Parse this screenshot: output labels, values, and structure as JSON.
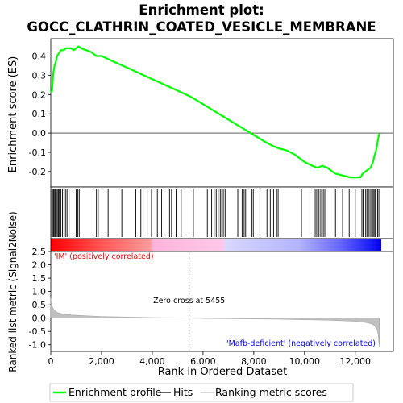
{
  "chart_data": {
    "type": "line",
    "title_line1": "Enrichment plot:",
    "title_line2": "GOCC_CLATHRIN_COATED_VESICLE_MEMBRANE",
    "es_ylabel": "Enrichment score (ES)",
    "metric_ylabel": "Ranked list metric (Signal2Noise)",
    "xlabel": "Rank in Ordered Dataset",
    "xlim": [
      0,
      13500
    ],
    "es_ylim": [
      -0.28,
      0.49
    ],
    "metric_ylim": [
      -1.25,
      2.5
    ],
    "x_ticks": [
      "0",
      "2,000",
      "4,000",
      "6,000",
      "8,000",
      "10,000",
      "12,000"
    ],
    "x_tick_values": [
      0,
      2000,
      4000,
      6000,
      8000,
      10000,
      12000
    ],
    "es_ticks": [
      "-0.2",
      "-0.1",
      "0.0",
      "0.1",
      "0.2",
      "0.3",
      "0.4"
    ],
    "es_tick_values": [
      -0.2,
      -0.1,
      0.0,
      0.1,
      0.2,
      0.3,
      0.4
    ],
    "metric_ticks": [
      "-1.0",
      "-0.5",
      "0.0",
      "0.5",
      "1.0",
      "1.5",
      "2.0",
      "2.5"
    ],
    "metric_tick_values": [
      -1.0,
      -0.5,
      0.0,
      0.5,
      1.0,
      1.5,
      2.0,
      2.5
    ],
    "total_genes": 12950,
    "zero_cross_rank": 5455,
    "zero_cross_label": "Zero cross at 5455",
    "pos_label": "'IM' (positively correlated)",
    "neg_label": "'Mafb-deficient' (negatively correlated)",
    "legend": [
      {
        "name": "Enrichment profile",
        "color": "#00ff00"
      },
      {
        "name": "Hits",
        "color": "#000000"
      },
      {
        "name": "Ranking metric scores",
        "color": "#c0c0c0"
      }
    ],
    "colors": {
      "es_line": "#00ff00",
      "hits": "#000000",
      "metric": "#c0c0c0",
      "pos_text": "#ff0000",
      "neg_text": "#0000ff",
      "zero_line": "#808080"
    },
    "es_profile": {
      "x": [
        0,
        50,
        100,
        150,
        200,
        250,
        300,
        350,
        400,
        500,
        600,
        700,
        800,
        900,
        1000,
        1100,
        1200,
        1400,
        1600,
        1800,
        2000,
        2500,
        3000,
        3500,
        4000,
        4500,
        5000,
        5500,
        6000,
        6500,
        7000,
        7500,
        8000,
        8500,
        8800,
        9000,
        9300,
        9600,
        10000,
        10300,
        10500,
        10700,
        10900,
        11200,
        11500,
        11800,
        12000,
        12200,
        12300,
        12400,
        12500,
        12600,
        12700,
        12750,
        12800,
        12850,
        12900,
        12950
      ],
      "y": [
        0.21,
        0.22,
        0.31,
        0.35,
        0.37,
        0.4,
        0.41,
        0.42,
        0.43,
        0.43,
        0.44,
        0.44,
        0.44,
        0.43,
        0.44,
        0.45,
        0.44,
        0.43,
        0.42,
        0.4,
        0.4,
        0.37,
        0.34,
        0.31,
        0.28,
        0.25,
        0.22,
        0.19,
        0.15,
        0.11,
        0.07,
        0.03,
        -0.01,
        -0.05,
        -0.07,
        -0.08,
        -0.09,
        -0.11,
        -0.15,
        -0.17,
        -0.18,
        -0.17,
        -0.18,
        -0.21,
        -0.22,
        -0.23,
        -0.23,
        -0.23,
        -0.21,
        -0.2,
        -0.19,
        -0.18,
        -0.15,
        -0.12,
        -0.1,
        -0.07,
        -0.03,
        0.0
      ]
    },
    "hits": [
      40,
      70,
      110,
      150,
      180,
      220,
      260,
      300,
      340,
      400,
      460,
      520,
      580,
      640,
      720,
      1000,
      1060,
      1120,
      1800,
      1870,
      2260,
      2800,
      3350,
      3550,
      3640,
      3800,
      3970,
      4200,
      4370,
      4680,
      4760,
      4940,
      5140,
      5620,
      6170,
      6340,
      6440,
      6520,
      6600,
      6680,
      6740,
      6800,
      6870,
      7370,
      7540,
      7620,
      7680,
      7920,
      7980,
      8240,
      8520,
      8650,
      8720,
      8780,
      8900,
      8960,
      9880,
      10210,
      10420,
      10480,
      10530,
      10570,
      10640,
      10740,
      10800,
      11220,
      11500,
      11760,
      12000,
      12260,
      12310,
      12410,
      12460,
      12520,
      12580,
      12640,
      12700,
      12740,
      12780,
      12820,
      12880,
      12930
    ],
    "metric": {
      "x": [
        0,
        20,
        50,
        100,
        200,
        300,
        500,
        800,
        1200,
        1600,
        2000,
        3000,
        4000,
        5000,
        5455,
        6000,
        7000,
        8000,
        9000,
        10000,
        10500,
        11000,
        11500,
        12000,
        12300,
        12500,
        12650,
        12750,
        12850,
        12900,
        12950
      ],
      "y": [
        0.75,
        0.55,
        0.45,
        0.35,
        0.25,
        0.2,
        0.15,
        0.12,
        0.1,
        0.08,
        0.06,
        0.04,
        0.02,
        0.01,
        0.0,
        -0.01,
        -0.02,
        -0.03,
        -0.04,
        -0.06,
        -0.07,
        -0.08,
        -0.1,
        -0.12,
        -0.15,
        -0.18,
        -0.22,
        -0.28,
        -0.4,
        -0.6,
        -1.1
      ]
    }
  }
}
